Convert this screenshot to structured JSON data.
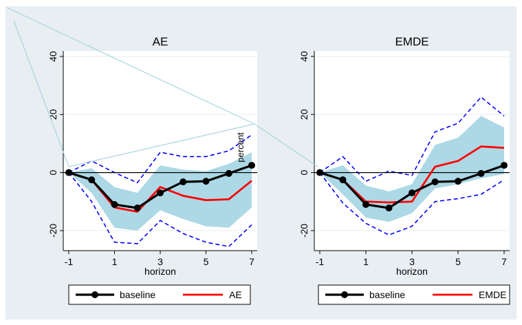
{
  "colors": {
    "outer_background": "#ffffff",
    "panel_background": "#e8eef2",
    "plot_background": "#ffffff",
    "baseline": "#000000",
    "comparison": "#ff0000",
    "band_fill": "#add8e6",
    "outer_band": "#0000ff",
    "zero_line": "#000000",
    "grid": "#e8eef2",
    "artifact_line": "#a8d4e0"
  },
  "annotation": {
    "text": "percent"
  },
  "chart_data": [
    {
      "type": "line",
      "title": "AE",
      "xlabel": "horizon",
      "ylabel": "",
      "xlim": [
        -1,
        7
      ],
      "ylim": [
        -25,
        40
      ],
      "xticks": [
        -1,
        1,
        3,
        5,
        7
      ],
      "yticks": [
        -20,
        0,
        20,
        40
      ],
      "x": [
        -1,
        0,
        1,
        2,
        3,
        4,
        5,
        6,
        7
      ],
      "series": [
        {
          "name": "baseline",
          "values": [
            0,
            -2.5,
            -11,
            -12.2,
            -7,
            -3.2,
            -3,
            -0.3,
            2.5
          ]
        },
        {
          "name": "AE",
          "values": [
            0,
            -2.5,
            -12,
            -13.5,
            -5,
            -8,
            -9.5,
            -9.2,
            -2.8
          ]
        }
      ],
      "band_inner": {
        "upper": [
          0,
          1.5,
          -5,
          -7,
          2.5,
          1,
          0.5,
          3,
          7
        ],
        "lower": [
          0,
          -7,
          -19,
          -20,
          -13,
          -16,
          -18.5,
          -19,
          -12
        ]
      },
      "band_outer": {
        "upper": [
          0,
          4,
          0,
          -3.5,
          7,
          5.5,
          5.5,
          7.5,
          13
        ],
        "lower": [
          0,
          -10,
          -24,
          -24.5,
          -16.5,
          -21,
          -24,
          -25.5,
          -18
        ]
      },
      "legend": [
        "baseline",
        "AE"
      ],
      "legend_position": "bottom",
      "grid": true
    },
    {
      "type": "line",
      "title": "EMDE",
      "xlabel": "horizon",
      "ylabel": "",
      "xlim": [
        -1,
        7
      ],
      "ylim": [
        -25,
        40
      ],
      "xticks": [
        -1,
        1,
        3,
        5,
        7
      ],
      "yticks": [
        -20,
        0,
        20,
        40
      ],
      "x": [
        -1,
        0,
        1,
        2,
        3,
        4,
        5,
        6,
        7
      ],
      "series": [
        {
          "name": "baseline",
          "values": [
            0,
            -2.5,
            -11,
            -12.2,
            -7,
            -3.2,
            -3,
            -0.3,
            2.5
          ]
        },
        {
          "name": "EMDE",
          "values": [
            0,
            -2.5,
            -10,
            -10.3,
            -10,
            2,
            4,
            9,
            8.5
          ]
        }
      ],
      "band_inner": {
        "upper": [
          0,
          2.5,
          -4.5,
          -6.5,
          -4,
          9.5,
          12,
          19.5,
          15.5
        ],
        "lower": [
          0,
          -7.5,
          -15.5,
          -17,
          -14,
          -5.5,
          -4,
          -2,
          -0.5
        ]
      },
      "band_outer": {
        "upper": [
          0,
          5.5,
          -3,
          0.5,
          -1,
          14,
          17,
          26,
          19.5
        ],
        "lower": [
          0,
          -10.5,
          -17.5,
          -21.5,
          -18.5,
          -10,
          -9,
          -7.5,
          -2.5
        ]
      },
      "legend": [
        "baseline",
        "EMDE"
      ],
      "legend_position": "bottom",
      "grid": true
    }
  ]
}
